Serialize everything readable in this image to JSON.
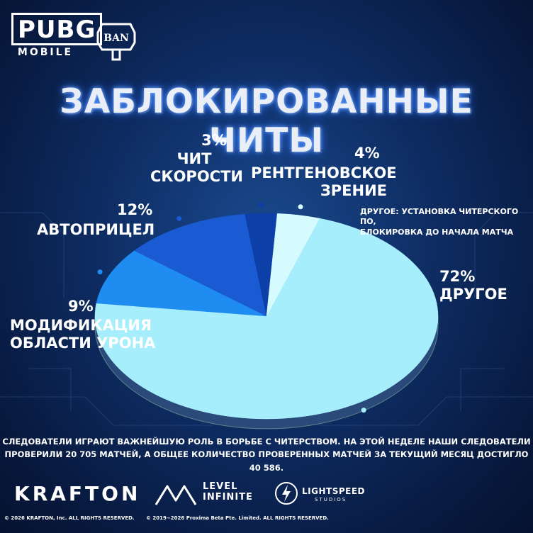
{
  "header": {
    "logo_text": "PUBG",
    "logo_subtext": "MOBILE",
    "ban_badge_text": "BAN",
    "title": "ЗАБЛОКИРОВАННЫЕ ЧИТЫ"
  },
  "chart_data": {
    "type": "pie",
    "title": "ЗАБЛОКИРОВАННЫЕ ЧИТЫ",
    "slices": [
      {
        "label": "ДРУГОЕ",
        "pct_text": "72%",
        "value": 72,
        "color": "#a6eefc"
      },
      {
        "label": "МОДИФИКАЦИЯ ОБЛАСТИ УРОНА",
        "pct_text": "9%",
        "value": 9,
        "color": "#1e8cf0"
      },
      {
        "label": "АВТОПРИЦЕЛ",
        "pct_text": "12%",
        "value": 12,
        "color": "#1a5ad2"
      },
      {
        "label": "ЧИТ СКОРОСТИ",
        "pct_text": "3%",
        "value": 3,
        "color": "#0d3fa8"
      },
      {
        "label": "РЕНТГЕНОВСКОЕ ЗРЕНИЕ",
        "pct_text": "4%",
        "value": 4,
        "color": "#d6fbff"
      }
    ]
  },
  "labels": {
    "other_pct": "72%",
    "other_name": "ДРУГОЕ",
    "damage_pct": "9%",
    "damage_name_1": "МОДИФИКАЦИЯ",
    "damage_name_2": "ОБЛАСТИ УРОНА",
    "aim_pct": "12%",
    "aim_name": "АВТОПРИЦЕЛ",
    "speed_pct": "3%",
    "speed_name_1": "ЧИТ",
    "speed_name_2": "СКОРОСТИ",
    "xray_pct": "4%",
    "xray_name_1": "РЕНТГЕНОВСКОЕ",
    "xray_name_2": "ЗРЕНИЕ"
  },
  "note": {
    "line1": "ДРУГОЕ: УСТАНОВКА ЧИТЕРСКОГО ПО,",
    "line2": "БЛОКИРОВКА ДО НАЧАЛА МАТЧА"
  },
  "footer": {
    "line1": "СЛЕДОВАТЕЛИ ИГРАЮТ ВАЖНЕЙШУЮ РОЛЬ В БОРЬБЕ С ЧИТЕРСТВОМ. НА ЭТОЙ НЕДЕЛЕ НАШИ СЛЕДОВАТЕЛИ",
    "line2": "ПРОВЕРИЛИ 20 705 МАТЧЕЙ, А ОБЩЕЕ КОЛИЧЕСТВО ПРОВЕРЕННЫХ МАТЧЕЙ ЗА ТЕКУЩИЙ МЕСЯЦ ДОСТИГЛО 40 586."
  },
  "brands": {
    "krafton": "KRAFTON",
    "level_1": "LEVEL",
    "level_2": "INFINITE",
    "lightspeed_1": "LIGHTSPEED",
    "lightspeed_2": "STUDIOS"
  },
  "copyright": {
    "krafton": "© 2026 KRAFTON, Inc. ALL RIGHTS RESERVED.",
    "proxima": "© 2019~2026 Proxima Beta Pte. Limited. ALL RIGHTS RESERVED."
  }
}
